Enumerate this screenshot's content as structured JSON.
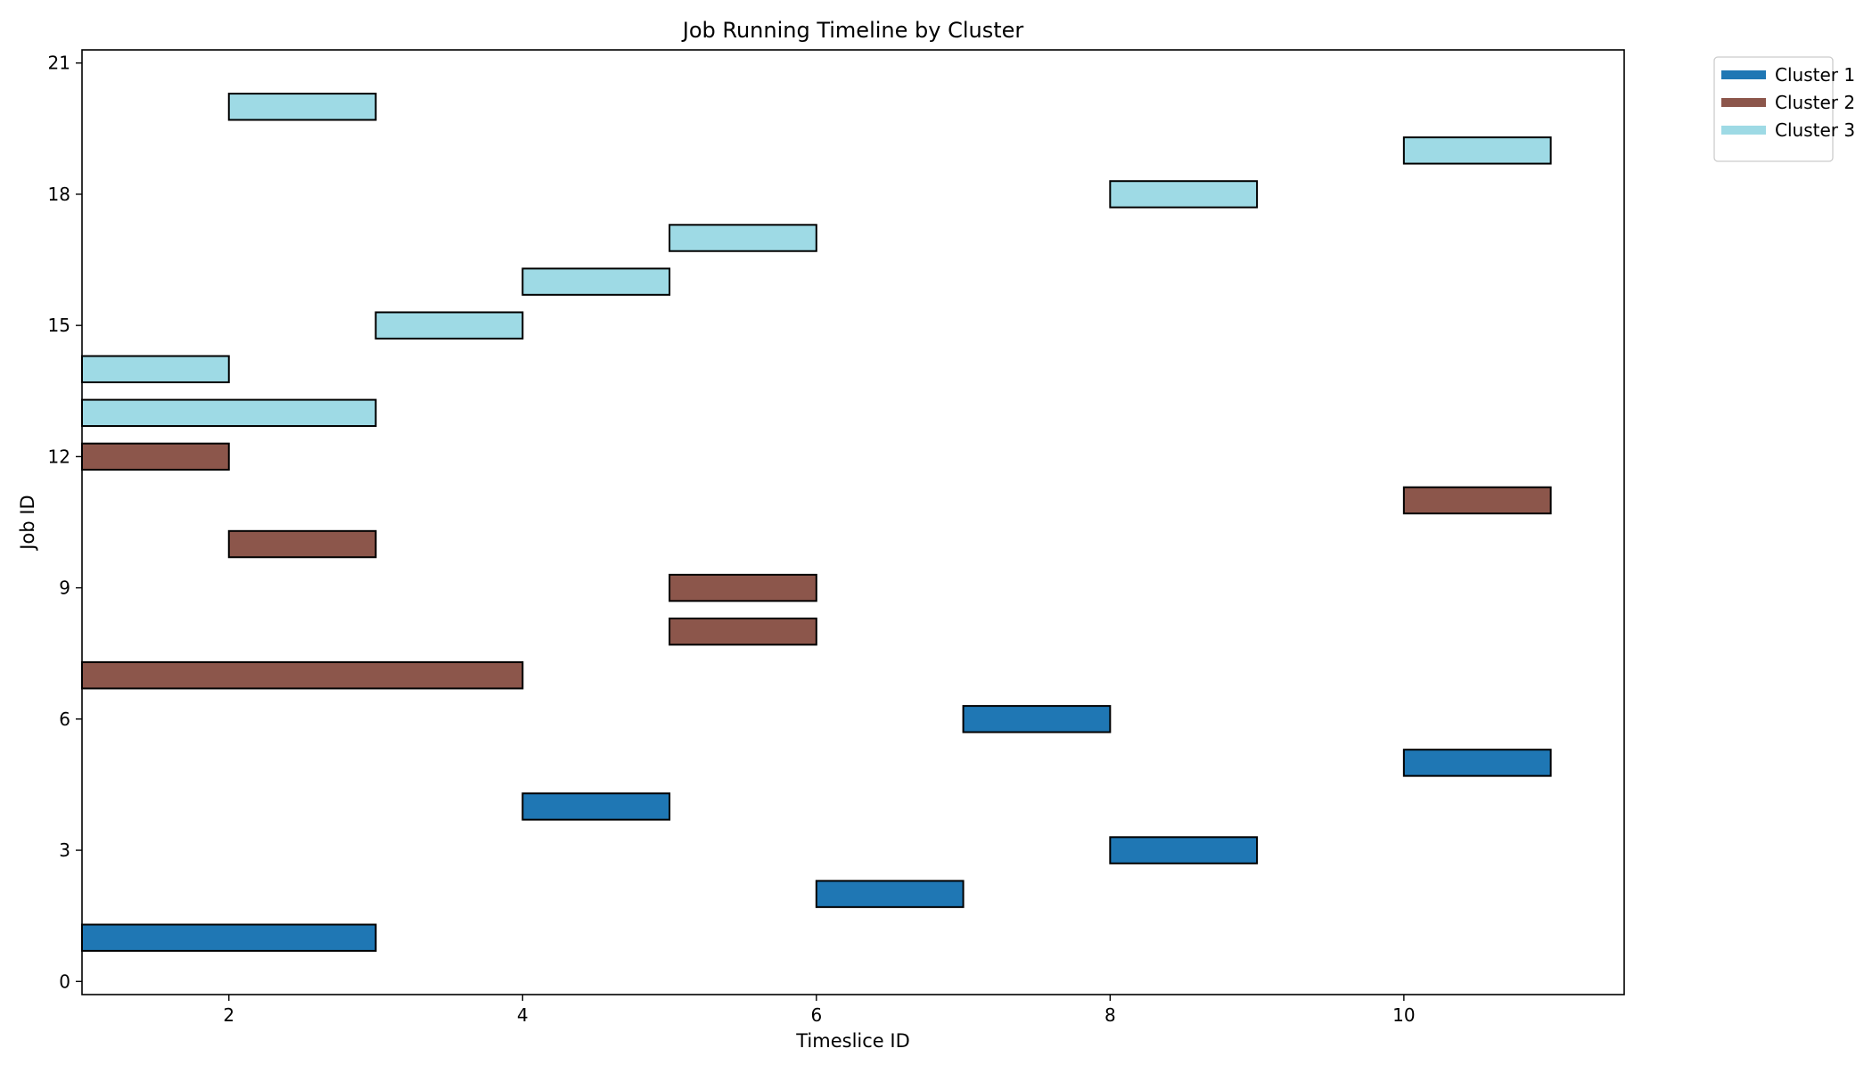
{
  "chart_data": {
    "type": "bar",
    "orientation": "horizontal-gantt",
    "title": "Job Running Timeline by Cluster",
    "xlabel": "Timeslice ID",
    "ylabel": "Job ID",
    "xlim": [
      1,
      11.5
    ],
    "ylim": [
      -0.3,
      21.3
    ],
    "xticks": [
      2,
      4,
      6,
      8,
      10
    ],
    "yticks": [
      0,
      3,
      6,
      9,
      12,
      15,
      18,
      21
    ],
    "grid": false,
    "legend_position": "upper-right-outside",
    "series": [
      {
        "name": "Cluster 1",
        "color": "#1f77b4",
        "jobs": [
          {
            "job": 1,
            "start": 1,
            "end": 3
          },
          {
            "job": 2,
            "start": 6,
            "end": 7
          },
          {
            "job": 3,
            "start": 8,
            "end": 9
          },
          {
            "job": 4,
            "start": 4,
            "end": 5
          },
          {
            "job": 5,
            "start": 10,
            "end": 11
          },
          {
            "job": 6,
            "start": 7,
            "end": 8
          }
        ]
      },
      {
        "name": "Cluster 2",
        "color": "#8c564b",
        "jobs": [
          {
            "job": 7,
            "start": 1,
            "end": 4
          },
          {
            "job": 8,
            "start": 5,
            "end": 6
          },
          {
            "job": 9,
            "start": 5,
            "end": 6
          },
          {
            "job": 10,
            "start": 2,
            "end": 3
          },
          {
            "job": 11,
            "start": 10,
            "end": 11
          },
          {
            "job": 12,
            "start": 1,
            "end": 2
          }
        ]
      },
      {
        "name": "Cluster 3",
        "color": "#9edae5",
        "jobs": [
          {
            "job": 13,
            "start": 1,
            "end": 3
          },
          {
            "job": 14,
            "start": 1,
            "end": 2
          },
          {
            "job": 15,
            "start": 3,
            "end": 4
          },
          {
            "job": 16,
            "start": 4,
            "end": 5
          },
          {
            "job": 17,
            "start": 5,
            "end": 6
          },
          {
            "job": 18,
            "start": 8,
            "end": 9
          },
          {
            "job": 19,
            "start": 10,
            "end": 11
          },
          {
            "job": 20,
            "start": 2,
            "end": 3
          }
        ]
      }
    ]
  }
}
